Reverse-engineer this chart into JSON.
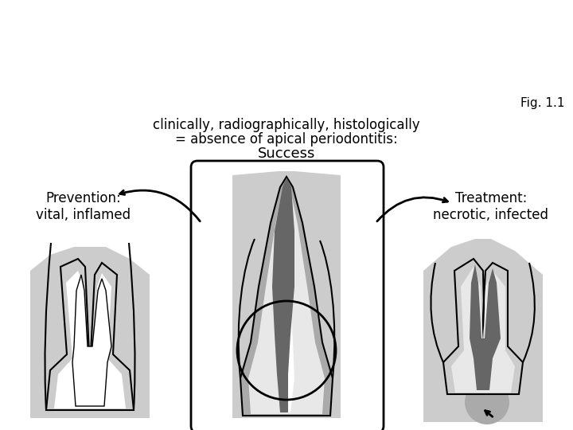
{
  "bg_color": "#ffffff",
  "light_gray": "#cccccc",
  "mid_gray": "#aaaaaa",
  "dark_gray": "#666666",
  "very_light_gray": "#e8e8e8",
  "black": "#000000",
  "white": "#ffffff",
  "text_prevention": "Prevention:\nvital, inflamed",
  "text_treatment": "Treatment:\nnecrotic, infected",
  "text_success_line1": "Success",
  "text_success_line2": "= absence of apical periodontitis:",
  "text_success_line3": "clinically, radiographically, histologically",
  "text_fig": "Fig. 1.1",
  "figsize": [
    7.2,
    5.4
  ],
  "dpi": 100
}
